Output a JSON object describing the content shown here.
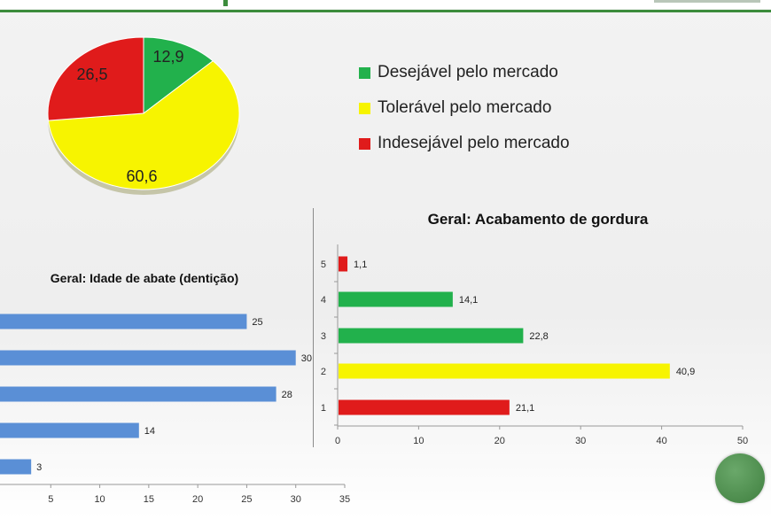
{
  "colors": {
    "desired": "#22b14c",
    "tolerated": "#f7f400",
    "undesired": "#e01b1b",
    "blue_bar": "#5a8fd6",
    "axis": "#999999"
  },
  "legend": [
    {
      "label": "Desejável pelo mercado",
      "color": "#22b14c"
    },
    {
      "label": "Tolerável pelo mercado",
      "color": "#f7f400"
    },
    {
      "label": "Indesejável pelo mercado",
      "color": "#e01b1b"
    }
  ],
  "chart_data": [
    {
      "type": "pie",
      "title": "",
      "slices": [
        {
          "label": "12,9",
          "value": 12.9,
          "color": "#22b14c"
        },
        {
          "label": "60,6",
          "value": 60.6,
          "color": "#f7f400"
        },
        {
          "label": "26,5",
          "value": 26.5,
          "color": "#e01b1b"
        }
      ]
    },
    {
      "type": "bar",
      "orientation": "horizontal",
      "title": "Geral: Acabamento de gordura",
      "categories": [
        "1",
        "2",
        "3",
        "4",
        "5"
      ],
      "values": [
        21.1,
        40.9,
        22.8,
        14.1,
        1.1
      ],
      "value_labels": [
        "21,1",
        "40,9",
        "22,8",
        "14,1",
        "1,1"
      ],
      "colors": [
        "#e01b1b",
        "#f7f400",
        "#22b14c",
        "#22b14c",
        "#e01b1b"
      ],
      "xlim": [
        0,
        50
      ],
      "xticks": [
        "0",
        "10",
        "20",
        "30",
        "40",
        "50"
      ],
      "grid": false
    },
    {
      "type": "bar",
      "orientation": "horizontal",
      "title": "Geral: Idade de abate (dentição)",
      "values": [
        3,
        14,
        28,
        30,
        25
      ],
      "value_labels": [
        "3",
        "14",
        "28",
        "30",
        "25"
      ],
      "color": "#5a8fd6",
      "xlim": [
        0,
        35
      ],
      "xticks": [
        "5",
        "10",
        "15",
        "20",
        "25",
        "30",
        "35"
      ],
      "grid": false
    }
  ]
}
